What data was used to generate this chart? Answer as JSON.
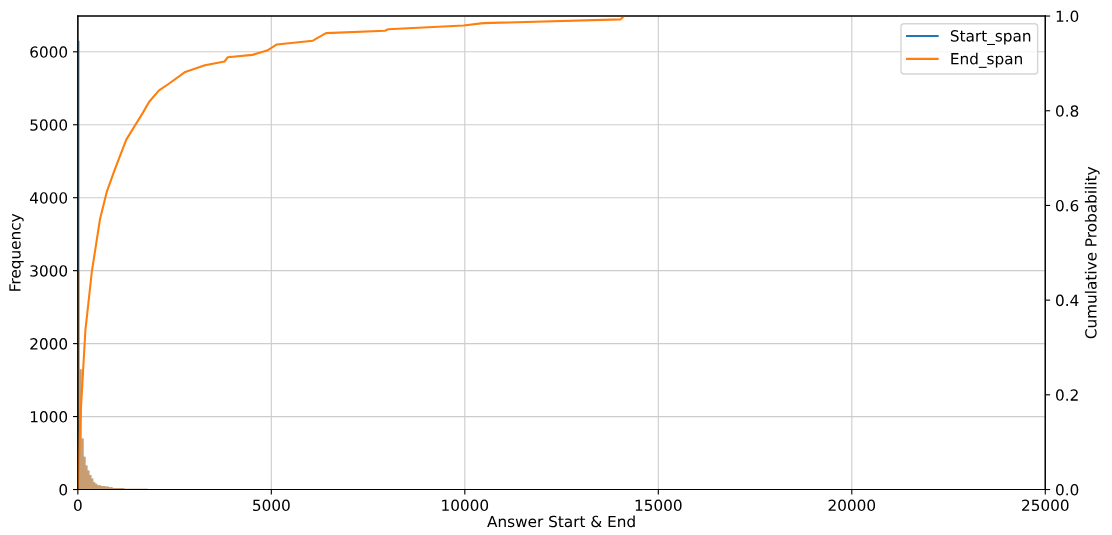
{
  "chart_data": {
    "type": "histogram",
    "xlabel": "Answer Start & End",
    "ylabel": "Frequency",
    "y2label": "Cumulative Probability",
    "bins": [
      0,
      50,
      100,
      150,
      200,
      250,
      300,
      350,
      400,
      450,
      500,
      600,
      700,
      800,
      900,
      1000,
      1200,
      1400,
      1600,
      1800,
      2000
    ],
    "series": [
      {
        "color": "#1f77b4",
        "values": [
          6150,
          1650,
          700,
          450,
          330,
          260,
          200,
          150,
          100,
          80,
          60,
          50,
          40,
          30,
          20,
          20,
          10,
          10,
          10,
          0
        ]
      },
      {
        "color": "#ff7f0e",
        "values": [
          3000,
          1650,
          700,
          450,
          330,
          260,
          200,
          150,
          100,
          80,
          60,
          50,
          40,
          30,
          20,
          20,
          10,
          10,
          10,
          0
        ]
      },
      {
        "type": "line",
        "name": "Start_span",
        "axis": "y2",
        "color": "#1f77b4"
      },
      {
        "type": "line",
        "name": "End_span",
        "axis": "y2",
        "color": "#ff7f0e",
        "x": [
          0,
          68,
          195,
          363,
          575,
          745,
          956,
          1252,
          1463,
          1675,
          1844,
          2098,
          2352,
          2775,
          3283,
          3791,
          3875,
          4510,
          4890,
          5144,
          6074,
          6413,
          7936,
          8020,
          9967,
          10475,
          14027,
          14112
        ],
        "values": [
          0,
          0.154,
          0.336,
          0.461,
          0.572,
          0.628,
          0.676,
          0.739,
          0.767,
          0.795,
          0.819,
          0.843,
          0.857,
          0.882,
          0.896,
          0.904,
          0.913,
          0.918,
          0.927,
          0.94,
          0.948,
          0.964,
          0.969,
          0.972,
          0.98,
          0.985,
          0.993,
          1.0
        ]
      }
    ],
    "xlim": [
      0,
      25000
    ],
    "xticks": [
      0,
      5000,
      10000,
      15000,
      20000,
      25000
    ],
    "ylim": [
      0,
      6490
    ],
    "yticks": [
      0,
      1000,
      2000,
      3000,
      4000,
      5000,
      6000
    ],
    "y2lim": [
      0,
      1.0
    ],
    "y2ticks": [
      {
        "value": 0,
        "label": "0.0"
      },
      {
        "value": 0.2,
        "label": "0.2"
      },
      {
        "value": 0.4,
        "label": "0.4"
      },
      {
        "value": 0.6,
        "label": "0.6"
      },
      {
        "value": 0.8,
        "label": "0.8"
      },
      {
        "value": 1.0,
        "label": "1.0"
      }
    ],
    "grid": true,
    "legend": "top right"
  }
}
